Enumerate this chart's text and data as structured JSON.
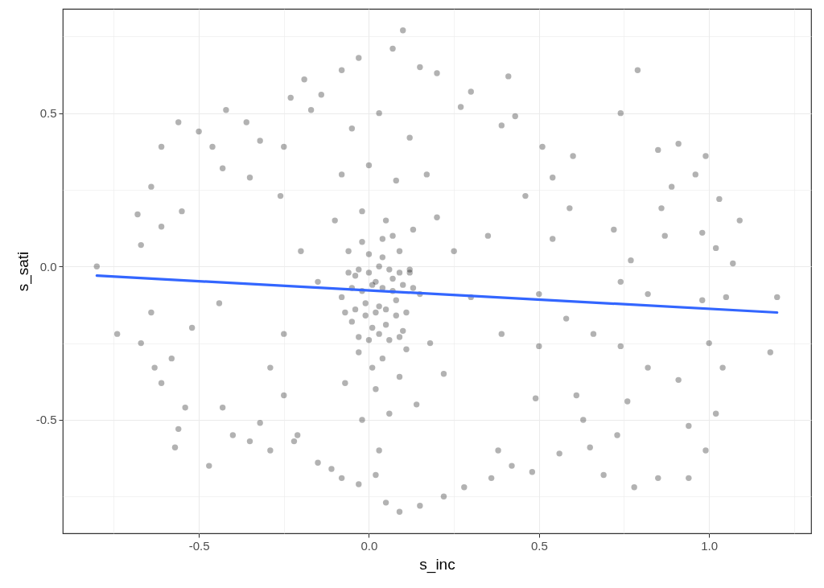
{
  "chart_data": {
    "type": "scatter",
    "xlabel": "s_inc",
    "ylabel": "s_sati",
    "xlim": [
      -0.9,
      1.3
    ],
    "ylim": [
      -0.87,
      0.84
    ],
    "xticks": [
      {
        "value": -0.75,
        "label": null
      },
      -0.5,
      {
        "value": -0.25,
        "label": null
      },
      {
        "value": 0,
        "label": "0.0"
      },
      {
        "value": 0.25,
        "label": null
      },
      0.5,
      {
        "value": 0.75,
        "label": null
      },
      {
        "value": 1,
        "label": "1.0"
      },
      {
        "value": 1.25,
        "label": null
      }
    ],
    "yticks": [
      {
        "value": -0.75,
        "label": null
      },
      -0.5,
      {
        "value": -0.25,
        "label": null
      },
      {
        "value": 0,
        "label": "0.0"
      },
      {
        "value": 0.25,
        "label": null
      },
      0.5,
      {
        "value": 0.75,
        "label": null
      }
    ],
    "grid": true,
    "marker": "circle",
    "series": [
      {
        "color": "#000000",
        "x": [
          0.1,
          -0.19,
          -0.23,
          -0.14,
          -0.03,
          0.07,
          -0.56,
          -0.5,
          -0.42,
          -0.36,
          -0.61,
          -0.32,
          -0.46,
          -0.64,
          -0.68,
          -0.8,
          -0.67,
          -0.61,
          -0.55,
          -0.43,
          -0.35,
          -0.25,
          -0.26,
          -0.17,
          -0.08,
          0.15,
          0.79,
          0.41,
          0.3,
          0.2,
          0.27,
          0.43,
          0.39,
          0.51,
          0.74,
          0.91,
          0.99,
          0.85,
          0.6,
          0.54,
          0.96,
          1.03,
          1.09,
          1.02,
          1.07,
          0.86,
          0.89,
          0.59,
          0.46,
          0.72,
          0.87,
          0.98,
          0.54,
          0.77,
          -0.74,
          -0.67,
          -0.64,
          -0.63,
          -0.61,
          -0.58,
          -0.56,
          -0.57,
          -0.54,
          -0.47,
          -0.52,
          -0.43,
          -0.4,
          -0.35,
          -0.29,
          -0.32,
          -0.25,
          -0.22,
          -0.15,
          -0.08,
          -0.03,
          0.05,
          0.09,
          0.15,
          0.02,
          -0.11,
          -0.21,
          -0.44,
          -0.25,
          -0.29,
          1.2,
          1.18,
          1.05,
          1.0,
          1.04,
          1.02,
          0.99,
          0.94,
          0.94,
          0.91,
          0.85,
          0.78,
          0.69,
          0.65,
          0.73,
          0.56,
          0.48,
          0.42,
          0.36,
          0.28,
          0.22,
          0.38,
          0.63,
          0.49,
          0.61,
          0.76,
          0.82,
          0.74,
          0.66,
          0.98,
          0.82,
          0.74,
          0.5,
          0.58,
          0.5,
          0.39,
          -0.05,
          0.03,
          0.12,
          -0.08,
          0.0,
          0.08,
          0.17,
          -0.1,
          -0.02,
          0.05,
          0.13,
          0.2,
          -0.06,
          0.0,
          0.04,
          0.09,
          -0.04,
          0.02,
          0.07,
          0.12,
          -0.08,
          -0.01,
          0.03,
          0.08,
          0.15,
          -0.05,
          0.01,
          0.05,
          0.1,
          -0.03,
          0.04,
          0.11,
          0.18,
          -0.07,
          0.02,
          0.09,
          -0.02,
          0.06,
          0.14,
          0.03,
          0.25,
          0.3,
          0.22,
          0.35,
          -0.15,
          -0.2,
          -0.06,
          -0.03,
          0.0,
          0.03,
          0.06,
          0.09,
          0.12,
          -0.05,
          -0.02,
          0.01,
          0.04,
          0.07,
          0.1,
          0.13,
          -0.07,
          -0.04,
          -0.01,
          0.02,
          0.05,
          0.08,
          0.11,
          -0.03,
          0.0,
          0.03,
          0.06,
          0.09,
          -0.02,
          0.04,
          0.07,
          0.01
        ],
        "values": [
          0.77,
          0.61,
          0.55,
          0.56,
          0.68,
          0.71,
          0.47,
          0.44,
          0.51,
          0.47,
          0.39,
          0.41,
          0.39,
          0.26,
          0.17,
          0.0,
          0.07,
          0.13,
          0.18,
          0.32,
          0.29,
          0.39,
          0.23,
          0.51,
          0.64,
          0.65,
          0.64,
          0.62,
          0.57,
          0.63,
          0.52,
          0.49,
          0.46,
          0.39,
          0.5,
          0.4,
          0.36,
          0.38,
          0.36,
          0.29,
          0.3,
          0.22,
          0.15,
          0.06,
          0.01,
          0.19,
          0.26,
          0.19,
          0.23,
          0.12,
          0.1,
          0.11,
          0.09,
          0.02,
          -0.22,
          -0.25,
          -0.15,
          -0.33,
          -0.38,
          -0.3,
          -0.53,
          -0.59,
          -0.46,
          -0.65,
          -0.2,
          -0.46,
          -0.55,
          -0.57,
          -0.6,
          -0.51,
          -0.42,
          -0.57,
          -0.64,
          -0.69,
          -0.71,
          -0.77,
          -0.8,
          -0.78,
          -0.68,
          -0.66,
          -0.55,
          -0.12,
          -0.22,
          -0.33,
          -0.1,
          -0.28,
          -0.1,
          -0.25,
          -0.33,
          -0.48,
          -0.6,
          -0.52,
          -0.69,
          -0.37,
          -0.69,
          -0.72,
          -0.68,
          -0.59,
          -0.55,
          -0.61,
          -0.67,
          -0.65,
          -0.69,
          -0.72,
          -0.75,
          -0.6,
          -0.5,
          -0.43,
          -0.42,
          -0.44,
          -0.33,
          -0.26,
          -0.22,
          -0.11,
          -0.09,
          -0.05,
          -0.09,
          -0.17,
          -0.26,
          -0.22,
          0.45,
          0.5,
          0.42,
          0.3,
          0.33,
          0.28,
          0.3,
          0.15,
          0.18,
          0.15,
          0.12,
          0.16,
          0.05,
          0.04,
          0.03,
          0.05,
          -0.03,
          -0.05,
          -0.04,
          -0.02,
          -0.1,
          -0.12,
          -0.13,
          -0.11,
          -0.09,
          -0.18,
          -0.2,
          -0.19,
          -0.21,
          -0.28,
          -0.3,
          -0.27,
          -0.25,
          -0.38,
          -0.4,
          -0.36,
          -0.5,
          -0.48,
          -0.45,
          -0.6,
          0.05,
          -0.1,
          -0.35,
          0.1,
          -0.05,
          0.05,
          -0.02,
          -0.01,
          -0.02,
          0.0,
          -0.01,
          -0.02,
          -0.01,
          -0.07,
          -0.08,
          -0.06,
          -0.07,
          -0.08,
          -0.06,
          -0.07,
          -0.15,
          -0.14,
          -0.16,
          -0.15,
          -0.14,
          -0.16,
          -0.15,
          -0.23,
          -0.24,
          -0.22,
          -0.24,
          -0.23,
          0.08,
          0.09,
          0.1,
          -0.33
        ]
      },
      {
        "type": "line",
        "color": "#3366ff",
        "marker": "none",
        "x": [
          -0.8,
          1.2
        ],
        "values": [
          -0.03,
          -0.15
        ]
      }
    ]
  }
}
